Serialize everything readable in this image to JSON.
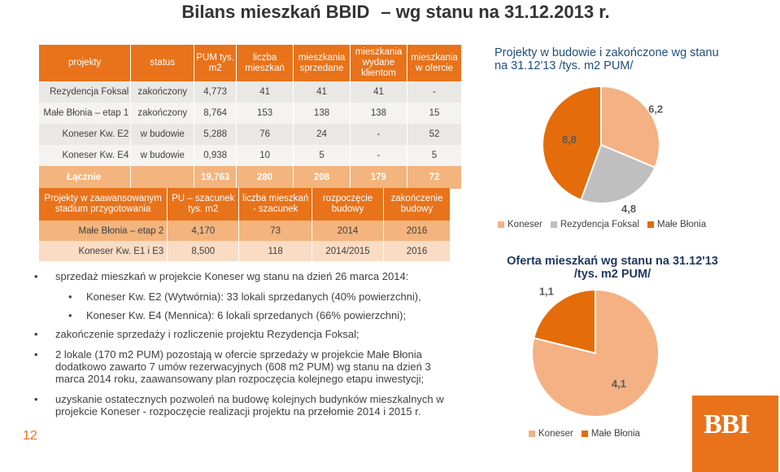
{
  "title": {
    "main": "Bilans mieszkań BBID",
    "rest": "– wg stanu na 31.12.2013 r."
  },
  "table1": {
    "headers": [
      "projekty",
      "status",
      "PUM tys. m2",
      "liczba mieszkań",
      "mieszkania sprzedane",
      "mieszkania wydane klientom",
      "mieszkania w ofercie"
    ],
    "rows": [
      [
        "Rezydencja Foksal",
        "zakończony",
        "4,773",
        "41",
        "41",
        "41",
        "-"
      ],
      [
        "Małe Błonia – etap 1",
        "zakończony",
        "8,764",
        "153",
        "138",
        "138",
        "15"
      ],
      [
        "Koneser Kw. E2",
        "w budowie",
        "5,288",
        "76",
        "24",
        "-",
        "52"
      ],
      [
        "Koneser Kw. E4",
        "w budowie",
        "0,938",
        "10",
        "5",
        "-",
        "5"
      ]
    ],
    "total": [
      "Łącznie",
      "",
      "19,763",
      "280",
      "208",
      "179",
      "72"
    ]
  },
  "table2": {
    "headers": [
      "Projekty w zaawansowanym stadium przygotowania",
      "PU – szacunek tys. m2",
      "liczba mieszkań - szacunek",
      "rozpoczęcie budowy",
      "zakończenie budowy"
    ],
    "rows": [
      [
        "Małe Błonia – etap 2",
        "4,170",
        "73",
        "2014",
        "2016"
      ],
      [
        "Koneser Kw. E1 i E3",
        "8,500",
        "118",
        "2014/2015",
        "2016"
      ]
    ]
  },
  "bullets": {
    "b1": "sprzedaż mieszkań w projekcie Koneser wg stanu na dzień 26 marca 2014:",
    "b1a": "Koneser Kw. E2 (Wytwórnia): 33 lokali sprzedanych (40% powierzchni),",
    "b1b": "Koneser Kw. E4 (Mennica): 6 lokali sprzedanych (66% powierzchni);",
    "b2": "zakończenie sprzedaży i rozliczenie projektu Rezydencja Foksal;",
    "b3": "2 lokale (170 m2 PUM) pozostają w ofercie sprzedaży w projekcie Małe Błonia dodatkowo zawarto 7 umów rezerwacyjnych (608 m2 PUM) wg stanu na dzień 3 marca 2014 roku, zaawansowany plan rozpoczęcia kolejnego etapu inwestycji;",
    "b4": "uzyskanie ostatecznych pozwoleń na budowę kolejnych budynków mieszkalnych w projekcie Koneser - rozpoczęcie realizacji projektu na przełomie 2014 i 2015 r."
  },
  "page_number": "12",
  "logo_text": "BBI",
  "chart_data": [
    {
      "type": "pie",
      "title": "Projekty w budowie i zakończone wg stanu na 31.12'13 /tys. m2 PUM/",
      "categories": [
        "Koneser",
        "Rezydencja Foksal",
        "Małe Błonia"
      ],
      "values": [
        6.2,
        4.8,
        8.8
      ],
      "labels": [
        "6,2",
        "4,8",
        "8,8"
      ],
      "colors": [
        "#f4b183",
        "#bfbfbf",
        "#e46c0a"
      ],
      "legend": "bottom"
    },
    {
      "type": "pie",
      "title": "Oferta mieszkań wg stanu na 31.12'13 /tys. m2 PUM/",
      "categories": [
        "Koneser",
        "Małe Błonia"
      ],
      "values": [
        4.1,
        1.1
      ],
      "labels": [
        "4,1",
        "1,1"
      ],
      "colors": [
        "#f4b183",
        "#e46c0a"
      ],
      "legend": "bottom"
    }
  ]
}
